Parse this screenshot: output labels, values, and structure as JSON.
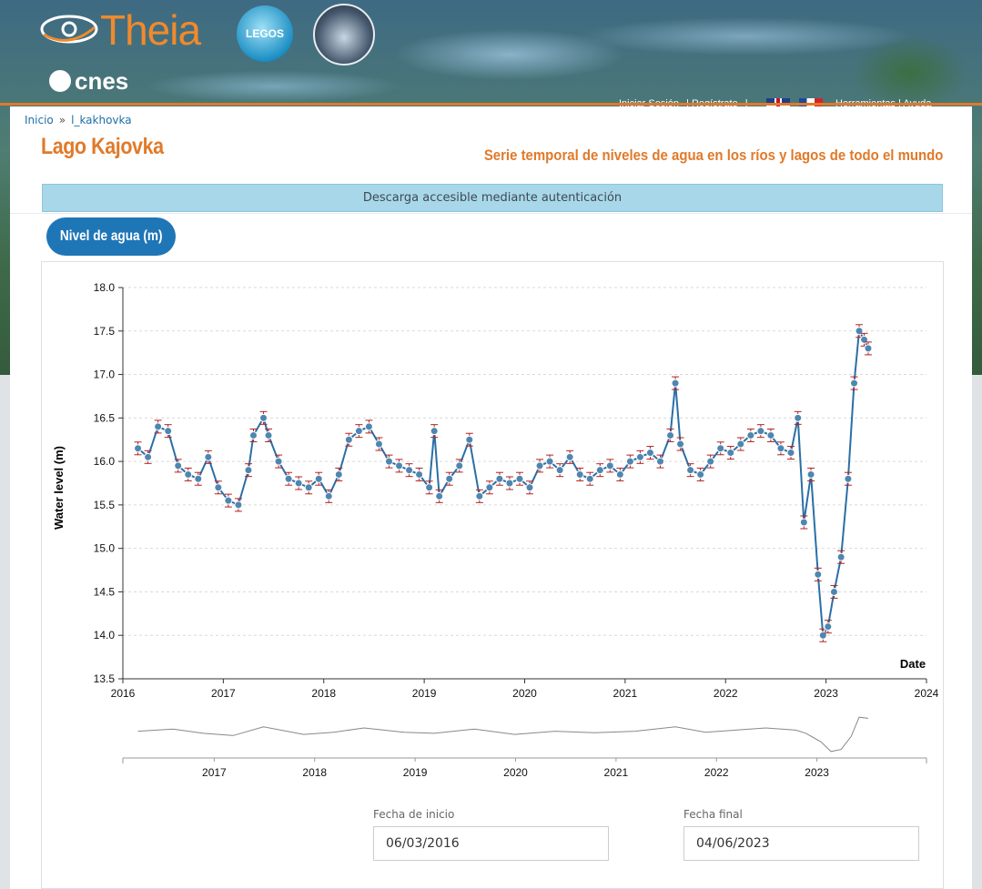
{
  "header": {
    "logo_theia": "Theia",
    "logo_legos": "LEGOS",
    "logo_cnes": "cnes",
    "top_links": [
      "Iniciar Sesión",
      "Regístrate",
      "Herramientas",
      "Ayuda"
    ],
    "flags": [
      "english-flag",
      "french-flag"
    ]
  },
  "breadcrumb": {
    "home": "Inicio",
    "separator": "»",
    "current": "l_kakhovka"
  },
  "page": {
    "title": "Lago Kajovka",
    "subtitle": "Serie temporal de niveles de agua en los ríos y lagos de todo el mundo",
    "notice": "Descarga accesible mediante autenticación",
    "tab_label": "Nivel de agua (m)"
  },
  "colors": {
    "accent": "#e07a2a",
    "series": "#2a6fa6",
    "marker": "#4f86b0",
    "error_bar": "#b22222",
    "tab": "#1f76b6",
    "notice_bg": "#a8d7ea"
  },
  "dates": {
    "start_label": "Fecha de inicio",
    "start_value": "06/03/2016",
    "end_label": "Fecha final",
    "end_value": "04/06/2023"
  },
  "chart_data": {
    "type": "line",
    "title": "",
    "xlabel": "Date",
    "ylabel": "Water level (m)",
    "xlim": [
      2016,
      2024
    ],
    "ylim": [
      13.5,
      18.0
    ],
    "y_ticks": [
      "13.5",
      "14.0",
      "14.5",
      "15.0",
      "15.5",
      "16.0",
      "16.5",
      "17.0",
      "17.5",
      "18.0"
    ],
    "x_ticks": [
      "2016",
      "2017",
      "2018",
      "2019",
      "2020",
      "2021",
      "2022",
      "2023",
      "2024"
    ],
    "navigator_ticks": [
      "2017",
      "2018",
      "2019",
      "2020",
      "2021",
      "2022",
      "2023"
    ],
    "grid": true,
    "markers": true,
    "error_bars": true,
    "series": [
      {
        "x": [
          2016.15,
          2016.25,
          2016.35,
          2016.45,
          2016.55,
          2016.65,
          2016.75,
          2016.85,
          2016.95,
          2017.05,
          2017.15,
          2017.25,
          2017.3,
          2017.4,
          2017.45,
          2017.55,
          2017.65,
          2017.75,
          2017.85,
          2017.95,
          2018.05,
          2018.15,
          2018.25,
          2018.35,
          2018.45,
          2018.55,
          2018.65,
          2018.75,
          2018.85,
          2018.95,
          2019.05,
          2019.1,
          2019.15,
          2019.25,
          2019.35,
          2019.45,
          2019.55,
          2019.65,
          2019.75,
          2019.85,
          2019.95,
          2020.05,
          2020.15,
          2020.25,
          2020.35,
          2020.45,
          2020.55,
          2020.65,
          2020.75,
          2020.85,
          2020.95,
          2021.05,
          2021.15,
          2021.25,
          2021.35,
          2021.45,
          2021.5,
          2021.55,
          2021.65,
          2021.75,
          2021.85,
          2021.95,
          2022.05,
          2022.15,
          2022.25,
          2022.35,
          2022.45,
          2022.55,
          2022.65,
          2022.72,
          2022.78,
          2022.85,
          2022.92,
          2022.97,
          2023.02,
          2023.08,
          2023.15,
          2023.22,
          2023.28,
          2023.33,
          2023.38,
          2023.42
        ],
        "y": [
          16.15,
          16.05,
          16.4,
          16.35,
          15.95,
          15.85,
          15.8,
          16.05,
          15.7,
          15.55,
          15.5,
          15.9,
          16.3,
          16.5,
          16.3,
          16.0,
          15.8,
          15.75,
          15.7,
          15.8,
          15.6,
          15.85,
          16.25,
          16.35,
          16.4,
          16.2,
          16.0,
          15.95,
          15.9,
          15.85,
          15.7,
          16.35,
          15.6,
          15.8,
          15.95,
          16.25,
          15.6,
          15.7,
          15.8,
          15.75,
          15.8,
          15.7,
          15.95,
          16.0,
          15.9,
          16.05,
          15.85,
          15.8,
          15.9,
          15.95,
          15.85,
          16.0,
          16.05,
          16.1,
          16.0,
          16.3,
          16.9,
          16.2,
          15.9,
          15.85,
          16.0,
          16.15,
          16.1,
          16.2,
          16.3,
          16.35,
          16.3,
          16.15,
          16.1,
          16.5,
          15.3,
          15.85,
          14.7,
          14.0,
          14.1,
          14.5,
          14.9,
          15.8,
          16.9,
          17.5,
          17.4,
          17.3
        ]
      }
    ],
    "navigator_series": {
      "x": [
        2016.15,
        2016.5,
        2016.8,
        2017.1,
        2017.4,
        2017.8,
        2018.1,
        2018.4,
        2018.8,
        2019.1,
        2019.5,
        2019.9,
        2020.3,
        2020.7,
        2021.1,
        2021.5,
        2021.8,
        2022.1,
        2022.4,
        2022.7,
        2022.8,
        2022.95,
        2023.05,
        2023.15,
        2023.25,
        2023.33,
        2023.42
      ],
      "y": [
        16.0,
        16.2,
        15.8,
        15.6,
        16.4,
        15.7,
        15.9,
        16.3,
        15.9,
        15.8,
        16.2,
        15.7,
        16.0,
        15.85,
        16.0,
        16.4,
        15.9,
        16.1,
        16.3,
        16.1,
        15.8,
        15.0,
        14.1,
        14.3,
        15.5,
        17.3,
        17.2
      ]
    }
  }
}
